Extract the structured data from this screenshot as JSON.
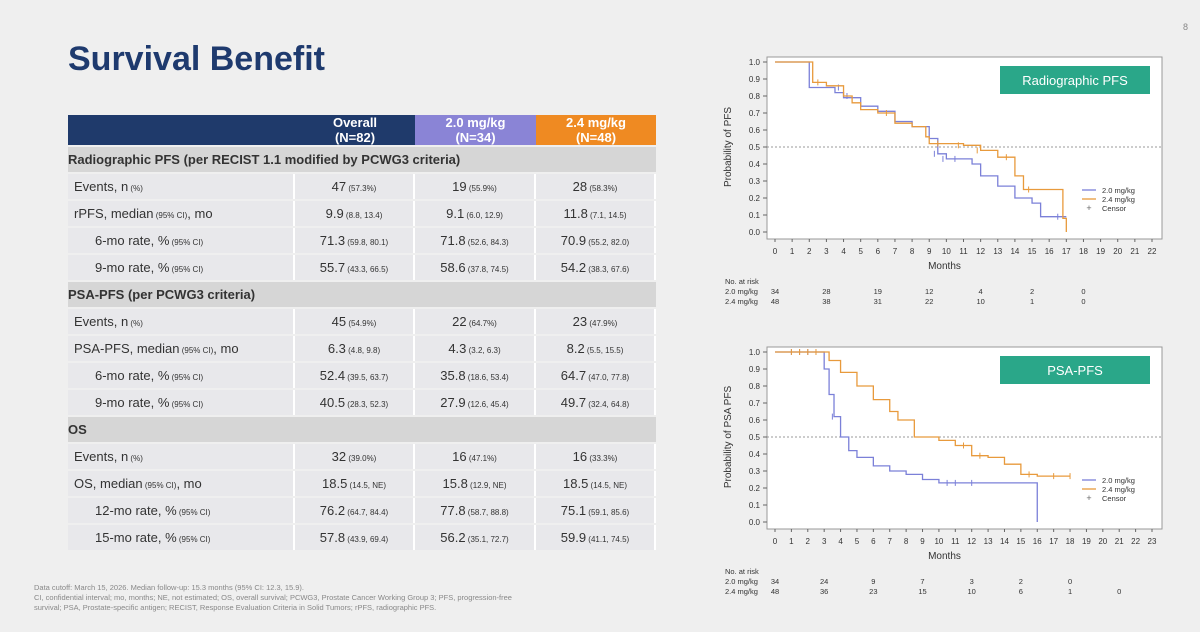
{
  "page_number": "8",
  "title": "Survival Benefit",
  "table": {
    "headers": [
      {
        "line1": "",
        "line2": ""
      },
      {
        "line1": "Overall",
        "line2": "(N=82)"
      },
      {
        "line1": "2.0 mg/kg",
        "line2": "(N=34)"
      },
      {
        "line1": "2.4 mg/kg",
        "line2": "(N=48)"
      }
    ],
    "sections": [
      {
        "title": "Radiographic PFS (per RECIST 1.1 modified by PCWG3 criteria)",
        "rows": [
          {
            "label_main": "Events, n",
            "label_small": " (%)",
            "label_after": "",
            "indent": false,
            "cells": [
              {
                "v": "47",
                "ci": " (57.3%)"
              },
              {
                "v": "19",
                "ci": " (55.9%)"
              },
              {
                "v": "28",
                "ci": " (58.3%)"
              }
            ]
          },
          {
            "label_main": "rPFS, median",
            "label_small": " (95% CI)",
            "label_after": ", mo",
            "indent": false,
            "cells": [
              {
                "v": "9.9",
                "ci": " (8.8, 13.4)"
              },
              {
                "v": "9.1",
                "ci": " (6.0, 12.9)"
              },
              {
                "v": "11.8",
                "ci": " (7.1, 14.5)"
              }
            ]
          },
          {
            "label_main": "6-mo rate, %",
            "label_small": " (95% CI)",
            "label_after": "",
            "indent": true,
            "cells": [
              {
                "v": "71.3",
                "ci": " (59.8, 80.1)"
              },
              {
                "v": "71.8",
                "ci": " (52.6, 84.3)"
              },
              {
                "v": "70.9",
                "ci": " (55.2, 82.0)"
              }
            ]
          },
          {
            "label_main": "9-mo rate, %",
            "label_small": " (95% CI)",
            "label_after": "",
            "indent": true,
            "cells": [
              {
                "v": "55.7",
                "ci": " (43.3, 66.5)"
              },
              {
                "v": "58.6",
                "ci": " (37.8, 74.5)"
              },
              {
                "v": "54.2",
                "ci": " (38.3, 67.6)"
              }
            ]
          }
        ]
      },
      {
        "title": "PSA-PFS (per PCWG3 criteria)",
        "rows": [
          {
            "label_main": "Events, n",
            "label_small": " (%)",
            "label_after": "",
            "indent": false,
            "cells": [
              {
                "v": "45",
                "ci": " (54.9%)"
              },
              {
                "v": "22",
                "ci": " (64.7%)"
              },
              {
                "v": "23",
                "ci": " (47.9%)"
              }
            ]
          },
          {
            "label_main": "PSA-PFS, median",
            "label_small": " (95% CI)",
            "label_after": ", mo",
            "indent": false,
            "cells": [
              {
                "v": "6.3",
                "ci": " (4.8, 9.8)"
              },
              {
                "v": "4.3",
                "ci": " (3.2, 6.3)"
              },
              {
                "v": "8.2",
                "ci": " (5.5, 15.5)"
              }
            ]
          },
          {
            "label_main": "6-mo rate, %",
            "label_small": " (95% CI)",
            "label_after": "",
            "indent": true,
            "cells": [
              {
                "v": "52.4",
                "ci": " (39.5, 63.7)"
              },
              {
                "v": "35.8",
                "ci": " (18.6, 53.4)"
              },
              {
                "v": "64.7",
                "ci": " (47.0, 77.8)"
              }
            ]
          },
          {
            "label_main": "9-mo rate, %",
            "label_small": " (95% CI)",
            "label_after": "",
            "indent": true,
            "cells": [
              {
                "v": "40.5",
                "ci": " (28.3, 52.3)"
              },
              {
                "v": "27.9",
                "ci": " (12.6, 45.4)"
              },
              {
                "v": "49.7",
                "ci": " (32.4, 64.8)"
              }
            ]
          }
        ]
      },
      {
        "title": "OS",
        "rows": [
          {
            "label_main": "Events, n",
            "label_small": " (%)",
            "label_after": "",
            "indent": false,
            "cells": [
              {
                "v": "32",
                "ci": " (39.0%)"
              },
              {
                "v": "16",
                "ci": " (47.1%)"
              },
              {
                "v": "16",
                "ci": " (33.3%)"
              }
            ]
          },
          {
            "label_main": "OS, median",
            "label_small": " (95% CI)",
            "label_after": ", mo",
            "indent": false,
            "cells": [
              {
                "v": "18.5",
                "ci": " (14.5, NE)"
              },
              {
                "v": "15.8",
                "ci": " (12.9, NE)"
              },
              {
                "v": "18.5",
                "ci": " (14.5, NE)"
              }
            ]
          },
          {
            "label_main": "12-mo rate, %",
            "label_small": " (95% CI)",
            "label_after": "",
            "indent": true,
            "cells": [
              {
                "v": "76.2",
                "ci": " (64.7, 84.4)"
              },
              {
                "v": "77.8",
                "ci": " (58.7, 88.8)"
              },
              {
                "v": "75.1",
                "ci": " (59.1, 85.6)"
              }
            ]
          },
          {
            "label_main": "15-mo rate, %",
            "label_small": " (95% CI)",
            "label_after": "",
            "indent": true,
            "cells": [
              {
                "v": "57.8",
                "ci": " (43.9, 69.4)"
              },
              {
                "v": "56.2",
                "ci": " (35.1, 72.7)"
              },
              {
                "v": "59.9",
                "ci": " (41.1, 74.5)"
              }
            ]
          }
        ]
      }
    ]
  },
  "footer": [
    "Data cutoff: March 15, 2026. Median follow-up: 15.3 months (95% CI: 12.3, 15.9).",
    "CI, confidential interval; mo, months; NE, not estimated; OS, overall survival; PCWG3, Prostate Cancer Working Group 3; PFS, progression-free",
    "survival; PSA, Prostate-specific antigen; RECIST, Response Evaluation Criteria in Solid Tumors; rPFS, radiographic PFS."
  ],
  "colors": {
    "navy": "#1f3a6b",
    "purple": "#8a84d6",
    "orange": "#ef8a22",
    "teal": "#2aa789",
    "line_blue": "#7b80d8",
    "line_orange": "#e89a3c"
  },
  "chart_data": [
    {
      "type": "line",
      "title": "Radiographic PFS",
      "ylabel": "Probability of PFS",
      "xlabel": "Months",
      "xticks": [
        0,
        1,
        2,
        3,
        4,
        5,
        6,
        7,
        8,
        9,
        10,
        11,
        12,
        13,
        14,
        15,
        16,
        17,
        18,
        19,
        20,
        21,
        22
      ],
      "yticks": [
        "0.0",
        "0.1",
        "0.2",
        "0.3",
        "0.4",
        "0.5",
        "0.6",
        "0.7",
        "0.8",
        "0.9",
        "1.0"
      ],
      "xlim": [
        0,
        22
      ],
      "ylim": [
        0,
        1
      ],
      "reference_line": 0.5,
      "legend": [
        "2.0 mg/kg",
        "2.4 mg/kg",
        "Censor"
      ],
      "series": [
        {
          "name": "2.0 mg/kg",
          "points": [
            [
              0,
              1
            ],
            [
              1.5,
              1
            ],
            [
              2,
              0.85
            ],
            [
              3,
              0.85
            ],
            [
              3.5,
              0.82
            ],
            [
              4,
              0.79
            ],
            [
              5,
              0.74
            ],
            [
              6,
              0.71
            ],
            [
              7,
              0.65
            ],
            [
              8,
              0.62
            ],
            [
              9,
              0.55
            ],
            [
              9.5,
              0.46
            ],
            [
              10,
              0.43
            ],
            [
              11.5,
              0.4
            ],
            [
              12,
              0.33
            ],
            [
              13,
              0.27
            ],
            [
              14,
              0.2
            ],
            [
              15,
              0.17
            ],
            [
              15.5,
              0.09
            ],
            [
              17,
              0.09
            ]
          ],
          "censor": [
            [
              3.7,
              0.85
            ],
            [
              4.2,
              0.8
            ],
            [
              9.3,
              0.46
            ],
            [
              9.8,
              0.43
            ],
            [
              10.5,
              0.43
            ],
            [
              16.5,
              0.09
            ]
          ]
        },
        {
          "name": "2.4 mg/kg",
          "points": [
            [
              0,
              1
            ],
            [
              1.8,
              1
            ],
            [
              2.2,
              0.88
            ],
            [
              3,
              0.86
            ],
            [
              4,
              0.8
            ],
            [
              4.5,
              0.76
            ],
            [
              5,
              0.72
            ],
            [
              6,
              0.7
            ],
            [
              7,
              0.64
            ],
            [
              8,
              0.62
            ],
            [
              8.8,
              0.56
            ],
            [
              9,
              0.52
            ],
            [
              10,
              0.52
            ],
            [
              11,
              0.51
            ],
            [
              12,
              0.48
            ],
            [
              13,
              0.44
            ],
            [
              14,
              0.33
            ],
            [
              14.5,
              0.25
            ],
            [
              16,
              0.25
            ],
            [
              16.8,
              0.08
            ],
            [
              17,
              0
            ]
          ],
          "censor": [
            [
              2.5,
              0.88
            ],
            [
              6.5,
              0.7
            ],
            [
              9.5,
              0.52
            ],
            [
              10.7,
              0.51
            ],
            [
              11.8,
              0.48
            ],
            [
              13.5,
              0.44
            ],
            [
              14.8,
              0.25
            ]
          ]
        }
      ],
      "at_risk": {
        "label": "No. at risk",
        "times": [
          "0",
          "3",
          "6",
          "9",
          "12",
          "15",
          "18"
        ],
        "rows": [
          {
            "name": "2.0 mg/kg",
            "values": [
              "34",
              "28",
              "19",
              "12",
              "4",
              "2",
              "0"
            ]
          },
          {
            "name": "2.4 mg/kg",
            "values": [
              "48",
              "38",
              "31",
              "22",
              "10",
              "1",
              "0"
            ]
          }
        ]
      }
    },
    {
      "type": "line",
      "title": "PSA-PFS",
      "ylabel": "Probability of PSA PFS",
      "xlabel": "Months",
      "xticks": [
        0,
        1,
        2,
        3,
        4,
        5,
        6,
        7,
        8,
        9,
        10,
        11,
        12,
        13,
        14,
        15,
        16,
        17,
        18,
        19,
        20,
        21,
        22,
        23
      ],
      "yticks": [
        "0.0",
        "0.1",
        "0.2",
        "0.3",
        "0.4",
        "0.5",
        "0.6",
        "0.7",
        "0.8",
        "0.9",
        "1.0"
      ],
      "xlim": [
        0,
        23
      ],
      "ylim": [
        0,
        1
      ],
      "reference_line": 0.5,
      "legend": [
        "2.0 mg/kg",
        "2.4 mg/kg",
        "Censor"
      ],
      "series": [
        {
          "name": "2.0 mg/kg",
          "points": [
            [
              0,
              1
            ],
            [
              2.8,
              1
            ],
            [
              3,
              0.9
            ],
            [
              3.3,
              0.75
            ],
            [
              3.6,
              0.62
            ],
            [
              4,
              0.5
            ],
            [
              4.5,
              0.42
            ],
            [
              5,
              0.38
            ],
            [
              6,
              0.33
            ],
            [
              7,
              0.3
            ],
            [
              8,
              0.28
            ],
            [
              9,
              0.25
            ],
            [
              10,
              0.23
            ],
            [
              16,
              0.23
            ],
            [
              16,
              0
            ]
          ],
          "censor": [
            [
              1,
              1
            ],
            [
              1.5,
              1
            ],
            [
              2,
              1
            ],
            [
              3.5,
              0.62
            ],
            [
              10.5,
              0.23
            ],
            [
              11,
              0.23
            ],
            [
              12,
              0.23
            ]
          ]
        },
        {
          "name": "2.4 mg/kg",
          "points": [
            [
              0,
              1
            ],
            [
              3,
              1
            ],
            [
              3.3,
              0.95
            ],
            [
              4,
              0.88
            ],
            [
              5,
              0.8
            ],
            [
              6,
              0.72
            ],
            [
              7,
              0.65
            ],
            [
              7.5,
              0.6
            ],
            [
              8.5,
              0.5
            ],
            [
              10,
              0.48
            ],
            [
              11,
              0.45
            ],
            [
              12,
              0.39
            ],
            [
              13,
              0.38
            ],
            [
              14,
              0.34
            ],
            [
              15,
              0.28
            ],
            [
              16,
              0.27
            ],
            [
              18,
              0.27
            ]
          ],
          "censor": [
            [
              1,
              1
            ],
            [
              1.5,
              1
            ],
            [
              2,
              1
            ],
            [
              2.5,
              1
            ],
            [
              11.5,
              0.45
            ],
            [
              12.5,
              0.39
            ],
            [
              15.5,
              0.28
            ],
            [
              17,
              0.27
            ],
            [
              18,
              0.27
            ]
          ]
        }
      ],
      "at_risk": {
        "label": "No. at risk",
        "times": [
          "0",
          "3",
          "6",
          "9",
          "12",
          "15",
          "18",
          "21"
        ],
        "rows": [
          {
            "name": "2.0 mg/kg",
            "values": [
              "34",
              "24",
              "9",
              "7",
              "3",
              "2",
              "0",
              ""
            ]
          },
          {
            "name": "2.4 mg/kg",
            "values": [
              "48",
              "36",
              "23",
              "15",
              "10",
              "6",
              "1",
              "0"
            ]
          }
        ]
      }
    }
  ]
}
